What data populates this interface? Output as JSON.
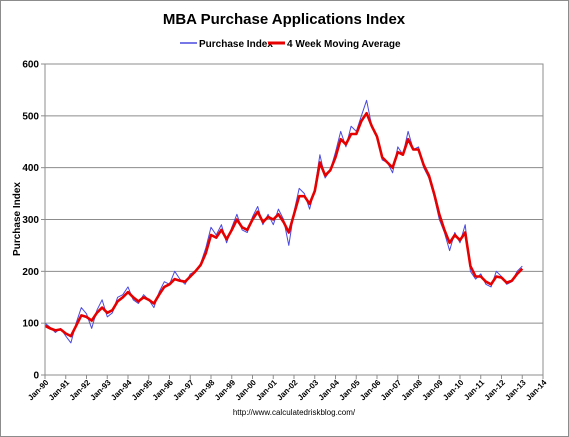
{
  "chart_data": {
    "type": "line",
    "title": "MBA Purchase Applications Index",
    "xlabel": "",
    "ylabel": "Purchase Index",
    "ylim": [
      0,
      600
    ],
    "yticks": [
      0,
      100,
      200,
      300,
      400,
      500,
      600
    ],
    "xlim": [
      1990,
      2014
    ],
    "xtick_labels": [
      "Jan-90",
      "Jan-91",
      "Jan-92",
      "Jan-93",
      "Jan-94",
      "Jan-95",
      "Jan-96",
      "Jan-97",
      "Jan-98",
      "Jan-99",
      "Jan-00",
      "Jan-01",
      "Jan-02",
      "Jan-03",
      "Jan-04",
      "Jan-05",
      "Jan-06",
      "Jan-07",
      "Jan-08",
      "Jan-09",
      "Jan-10",
      "Jan-11",
      "Jan-12",
      "Jan-13",
      "Jan-14"
    ],
    "grid": "horizontal",
    "legend": "top",
    "source": "http://www.calculatedriskblog.com/",
    "series": [
      {
        "name": "Purchase Index",
        "color": "#4a4adf",
        "x": [
          1990.0,
          1990.25,
          1990.5,
          1990.75,
          1991.0,
          1991.25,
          1991.5,
          1991.75,
          1992.0,
          1992.25,
          1992.5,
          1992.75,
          1993.0,
          1993.25,
          1993.5,
          1993.75,
          1994.0,
          1994.25,
          1994.5,
          1994.75,
          1995.0,
          1995.25,
          1995.5,
          1995.75,
          1996.0,
          1996.25,
          1996.5,
          1996.75,
          1997.0,
          1997.25,
          1997.5,
          1997.75,
          1998.0,
          1998.25,
          1998.5,
          1998.75,
          1999.0,
          1999.25,
          1999.5,
          1999.75,
          2000.0,
          2000.25,
          2000.5,
          2000.75,
          2001.0,
          2001.25,
          2001.5,
          2001.75,
          2002.0,
          2002.25,
          2002.5,
          2002.75,
          2003.0,
          2003.25,
          2003.5,
          2003.75,
          2004.0,
          2004.25,
          2004.5,
          2004.75,
          2005.0,
          2005.25,
          2005.5,
          2005.75,
          2006.0,
          2006.25,
          2006.5,
          2006.75,
          2007.0,
          2007.25,
          2007.5,
          2007.75,
          2008.0,
          2008.25,
          2008.5,
          2008.75,
          2009.0,
          2009.25,
          2009.5,
          2009.75,
          2010.0,
          2010.25,
          2010.5,
          2010.75,
          2011.0,
          2011.25,
          2011.5,
          2011.75,
          2012.0,
          2012.25,
          2012.5,
          2012.75,
          2013.0
        ],
        "values": [
          100,
          92,
          82,
          90,
          75,
          62,
          100,
          130,
          118,
          90,
          125,
          145,
          112,
          120,
          150,
          155,
          170,
          145,
          138,
          155,
          145,
          130,
          160,
          180,
          175,
          200,
          185,
          175,
          195,
          200,
          215,
          245,
          285,
          270,
          290,
          255,
          285,
          310,
          280,
          275,
          305,
          325,
          290,
          310,
          290,
          320,
          300,
          250,
          315,
          360,
          350,
          320,
          360,
          425,
          380,
          395,
          430,
          470,
          440,
          480,
          470,
          500,
          530,
          480,
          460,
          415,
          410,
          390,
          440,
          425,
          470,
          435,
          440,
          400,
          380,
          345,
          300,
          275,
          240,
          275,
          255,
          290,
          200,
          185,
          195,
          175,
          170,
          200,
          190,
          175,
          180,
          200,
          210
        ]
      },
      {
        "name": "4 Week Moving Average",
        "color": "#e60000",
        "x": [
          1990.0,
          1990.25,
          1990.5,
          1990.75,
          1991.0,
          1991.25,
          1991.5,
          1991.75,
          1992.0,
          1992.25,
          1992.5,
          1992.75,
          1993.0,
          1993.25,
          1993.5,
          1993.75,
          1994.0,
          1994.25,
          1994.5,
          1994.75,
          1995.0,
          1995.25,
          1995.5,
          1995.75,
          1996.0,
          1996.25,
          1996.5,
          1996.75,
          1997.0,
          1997.25,
          1997.5,
          1997.75,
          1998.0,
          1998.25,
          1998.5,
          1998.75,
          1999.0,
          1999.25,
          1999.5,
          1999.75,
          2000.0,
          2000.25,
          2000.5,
          2000.75,
          2001.0,
          2001.25,
          2001.5,
          2001.75,
          2002.0,
          2002.25,
          2002.5,
          2002.75,
          2003.0,
          2003.25,
          2003.5,
          2003.75,
          2004.0,
          2004.25,
          2004.5,
          2004.75,
          2005.0,
          2005.25,
          2005.5,
          2005.75,
          2006.0,
          2006.25,
          2006.5,
          2006.75,
          2007.0,
          2007.25,
          2007.5,
          2007.75,
          2008.0,
          2008.25,
          2008.5,
          2008.75,
          2009.0,
          2009.25,
          2009.5,
          2009.75,
          2010.0,
          2010.25,
          2010.5,
          2010.75,
          2011.0,
          2011.25,
          2011.5,
          2011.75,
          2012.0,
          2012.25,
          2012.5,
          2012.75,
          2013.0
        ],
        "values": [
          95,
          90,
          86,
          88,
          80,
          75,
          95,
          115,
          112,
          105,
          120,
          130,
          120,
          125,
          142,
          150,
          160,
          150,
          142,
          150,
          145,
          138,
          155,
          170,
          175,
          185,
          182,
          180,
          190,
          200,
          212,
          235,
          270,
          265,
          280,
          262,
          280,
          300,
          285,
          280,
          300,
          315,
          295,
          305,
          300,
          310,
          295,
          275,
          310,
          345,
          345,
          330,
          355,
          410,
          385,
          395,
          420,
          455,
          445,
          465,
          465,
          490,
          505,
          480,
          460,
          420,
          410,
          400,
          430,
          425,
          455,
          435,
          435,
          405,
          385,
          350,
          310,
          280,
          255,
          270,
          260,
          275,
          210,
          190,
          190,
          180,
          175,
          190,
          188,
          178,
          182,
          195,
          205
        ]
      }
    ]
  }
}
